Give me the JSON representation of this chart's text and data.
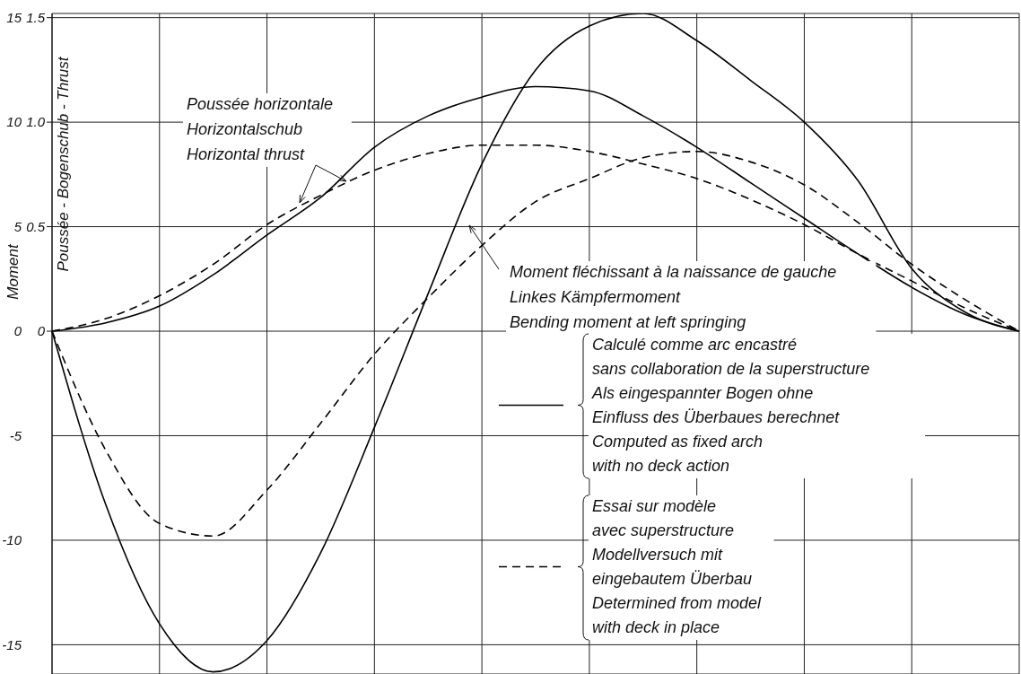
{
  "chart_data": {
    "type": "line",
    "ylabel": "Moment",
    "y2label": "Poussée - Bogenschub - Thrust",
    "categories": [
      null,
      null,
      null,
      null,
      null,
      null,
      null,
      null,
      null,
      null,
      null,
      null,
      null,
      null,
      null,
      null,
      null,
      null,
      null
    ],
    "series": [
      {
        "name": "Calculé comme arc encastré\nsans collaboration de la superstructure\nAls eingespannter Bogen ohne\nEinfluss des Überbaues berechnet\nComputed as fixed arch\nwith no deck action",
        "color": "#000000",
        "line_style": "solid",
        "values": [
          0,
          -8.3,
          -14.0,
          -16.3,
          -14.8,
          -10.6,
          -4.6,
          1.8,
          8.0,
          12.5,
          14.6,
          15.2,
          13.9,
          12.0,
          10.0,
          7.2,
          3.0,
          0.9,
          0
        ]
      },
      {
        "name": "Essai sur modèle\navec superstructure\nModellversuch mit\neingebautem Überbau\nDetermined from model\nwith deck in place",
        "color": "#000000",
        "line_style": "dashed",
        "values": [
          0,
          -5.7,
          -9.2,
          -9.8,
          -7.6,
          -4.4,
          -1.1,
          1.6,
          4.1,
          6.2,
          7.3,
          8.3,
          8.6,
          8.1,
          7.0,
          5.2,
          3.2,
          1.5,
          0
        ]
      },
      {
        "color": "#000000",
        "line_style": "solid",
        "axis": "y2",
        "values": [
          0,
          0.04,
          0.12,
          0.27,
          0.46,
          0.64,
          0.88,
          1.03,
          1.12,
          1.17,
          1.15,
          1.03,
          0.88,
          0.71,
          0.54,
          0.37,
          0.21,
          0.08,
          0
        ]
      },
      {
        "color": "#000000",
        "line_style": "dashed",
        "axis": "y2",
        "values": [
          0,
          0.06,
          0.17,
          0.32,
          0.51,
          0.65,
          0.77,
          0.85,
          0.89,
          0.89,
          0.86,
          0.8,
          0.73,
          0.63,
          0.51,
          0.37,
          0.24,
          0.11,
          0
        ]
      }
    ],
    "ylim": [
      -16.4,
      15.2
    ],
    "yticks": [
      -15,
      -10,
      -5,
      0,
      5,
      10,
      15
    ],
    "y2lim": [
      -1.64,
      1.52
    ],
    "y2ticks": [
      0,
      0.5,
      {
        "value": 1,
        "label": "1.0"
      },
      1.5
    ],
    "annotations": [
      "Poussée horizontale\nHorizontalschub\nHorizontal thrust",
      "Moment fléchissant à la naissance de gauche\nLinkes Kämpfermoment\nBending moment at left springing"
    ],
    "grid": true,
    "legend": "bottom right"
  }
}
